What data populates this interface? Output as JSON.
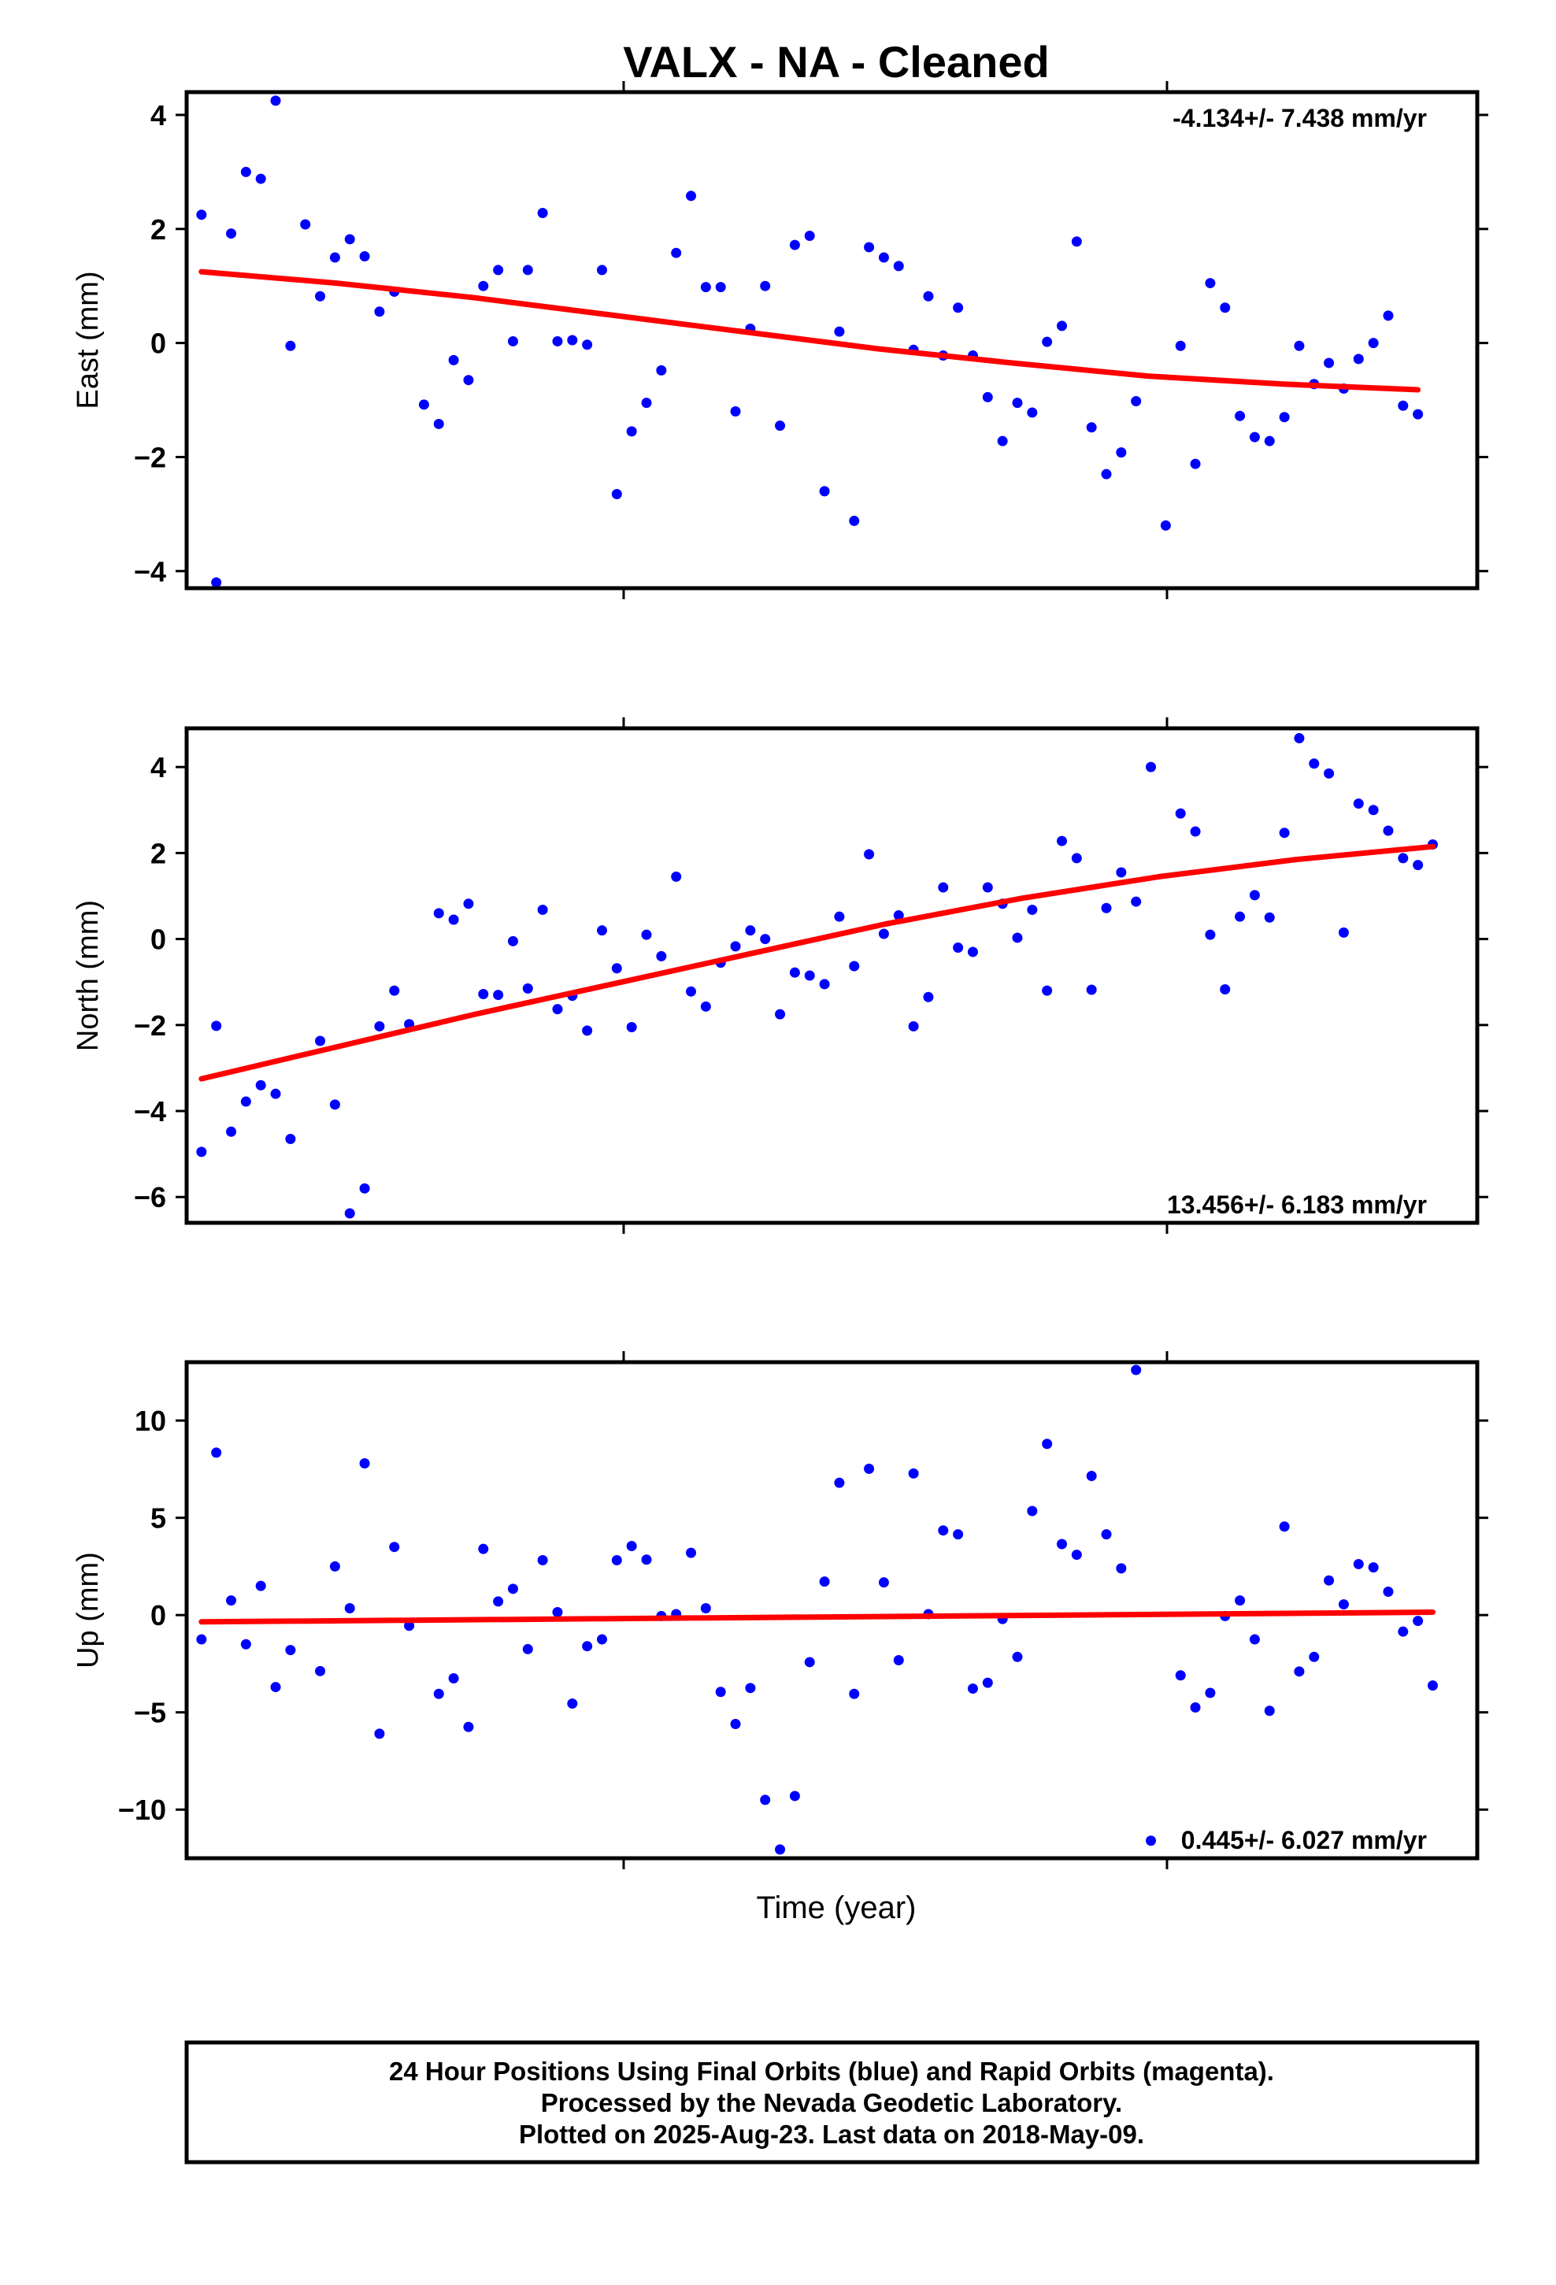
{
  "chart_data": {
    "type": "scatter",
    "title": "VALX  - NA - Cleaned",
    "xlabel": "Time (year)",
    "footer": [
      "24 Hour Positions Using Final Orbits (blue) and Rapid Orbits (magenta).",
      "Processed by the Nevada Geodetic Laboratory.",
      "Plotted on 2025-Aug-23. Last data on 2018-May-09."
    ],
    "colors": {
      "points": "#0000ff",
      "trend": "#ff0000",
      "axes": "#000000"
    },
    "x_index_range": [
      -1,
      86
    ],
    "panels": [
      {
        "id": "east",
        "ylabel": "East (mm)",
        "ylim": [
          -4.3,
          4.4
        ],
        "yticks": [
          4,
          2,
          0,
          -2,
          -4
        ],
        "ytick_labels": [
          "4",
          "2",
          "0",
          "−2",
          "−4"
        ],
        "rate_label": "-4.134+/- 7.438 mm/yr",
        "rate_position": "top-right",
        "trend": [
          1.25,
          1.05,
          0.8,
          0.5,
          0.2,
          -0.1,
          -0.35,
          -0.58,
          -0.72,
          -0.82
        ],
        "values": [
          2.25,
          -4.2,
          1.92,
          3.0,
          2.88,
          4.25,
          -0.05,
          2.08,
          0.82,
          1.5,
          1.82,
          1.52,
          0.55,
          0.9,
          null,
          -1.08,
          -1.42,
          -0.3,
          -0.65,
          1.0,
          1.28,
          0.03,
          1.28,
          2.28,
          0.03,
          0.05,
          -0.03,
          1.28,
          -2.65,
          -1.55,
          -1.05,
          -0.48,
          1.58,
          2.58,
          0.98,
          0.98,
          -1.2,
          0.25,
          1.0,
          -1.45,
          1.72,
          1.88,
          -2.6,
          0.2,
          -3.12,
          1.68,
          1.5,
          1.35,
          -0.12,
          0.82,
          -0.22,
          0.62,
          -0.22,
          -0.95,
          -1.72,
          -1.05,
          -1.22,
          0.02,
          0.3,
          1.78,
          -1.48,
          -2.3,
          -1.92,
          -1.02,
          null,
          -3.2,
          -0.05,
          -2.12,
          1.05,
          0.62,
          -1.28,
          -1.65,
          -1.72,
          -1.3,
          -0.05,
          -0.72,
          -0.35,
          -0.8,
          -0.28,
          0.0,
          0.48,
          -1.1,
          -1.25
        ]
      },
      {
        "id": "north",
        "ylabel": "North (mm)",
        "ylim": [
          -6.6,
          4.9
        ],
        "yticks": [
          4,
          2,
          0,
          -2,
          -4,
          -6
        ],
        "ytick_labels": [
          "4",
          "2",
          "0",
          "−2",
          "−4",
          "−6"
        ],
        "rate_label": "13.456+/- 6.183 mm/yr",
        "rate_position": "bottom-right",
        "trend": [
          -3.25,
          -2.5,
          -1.75,
          -1.05,
          -0.35,
          0.35,
          0.95,
          1.45,
          1.85,
          2.15
        ],
        "values": [
          -4.95,
          -2.02,
          -4.48,
          -3.78,
          -3.4,
          -3.6,
          -4.65,
          null,
          -2.37,
          -3.85,
          -6.38,
          -5.8,
          -2.03,
          -1.2,
          -1.98,
          null,
          0.6,
          0.45,
          0.82,
          -1.28,
          -1.3,
          -0.05,
          -1.15,
          0.68,
          -1.63,
          -1.32,
          -2.13,
          0.2,
          -0.68,
          -2.05,
          0.1,
          -0.4,
          1.45,
          -1.22,
          -1.57,
          -0.55,
          -0.17,
          0.2,
          0.0,
          -1.75,
          -0.78,
          -0.85,
          -1.05,
          0.52,
          -0.63,
          1.97,
          0.12,
          0.55,
          -2.03,
          -1.35,
          1.2,
          -0.2,
          -0.3,
          1.2,
          0.82,
          0.03,
          0.68,
          -1.2,
          2.28,
          1.88,
          -1.18,
          0.72,
          1.55,
          0.87,
          4.0,
          null,
          2.92,
          2.5,
          0.1,
          -1.17,
          0.52,
          1.02,
          0.5,
          2.47,
          4.67,
          4.08,
          3.85,
          0.15,
          3.15,
          3.0,
          2.52,
          1.88,
          1.72,
          2.2
        ]
      },
      {
        "id": "up",
        "ylabel": "Up (mm)",
        "ylim": [
          -12.5,
          13.0
        ],
        "yticks": [
          10,
          5,
          0,
          -5,
          -10
        ],
        "ytick_labels": [
          "10",
          "5",
          "0",
          "−5",
          "−10"
        ],
        "rate_label": "0.445+/- 6.027 mm/yr",
        "rate_position": "bottom-right",
        "trend": [
          -0.35,
          0.15
        ],
        "values": [
          -1.25,
          8.35,
          0.75,
          -1.5,
          1.5,
          -3.7,
          -1.8,
          null,
          -2.88,
          2.5,
          0.35,
          7.8,
          -6.1,
          3.5,
          -0.55,
          null,
          -4.05,
          -3.25,
          -5.75,
          3.4,
          0.7,
          1.35,
          -1.75,
          2.82,
          0.15,
          -4.55,
          -1.6,
          -1.25,
          2.82,
          3.55,
          2.85,
          -0.05,
          0.05,
          3.2,
          0.35,
          -3.95,
          -5.6,
          -3.75,
          -9.5,
          -12.05,
          -9.3,
          -2.42,
          1.72,
          6.8,
          -4.05,
          7.52,
          1.68,
          -2.32,
          7.28,
          0.05,
          4.35,
          4.15,
          -3.78,
          -3.48,
          -0.2,
          -2.15,
          5.35,
          8.8,
          3.65,
          3.1,
          7.15,
          4.15,
          2.4,
          12.6,
          -11.6,
          null,
          -3.1,
          -4.75,
          -4.0,
          -0.05,
          0.75,
          -1.25,
          -4.92,
          4.55,
          -2.9,
          -2.15,
          1.78,
          0.55,
          2.62,
          2.45,
          1.2,
          -0.85,
          -0.3,
          -3.62
        ]
      }
    ]
  }
}
